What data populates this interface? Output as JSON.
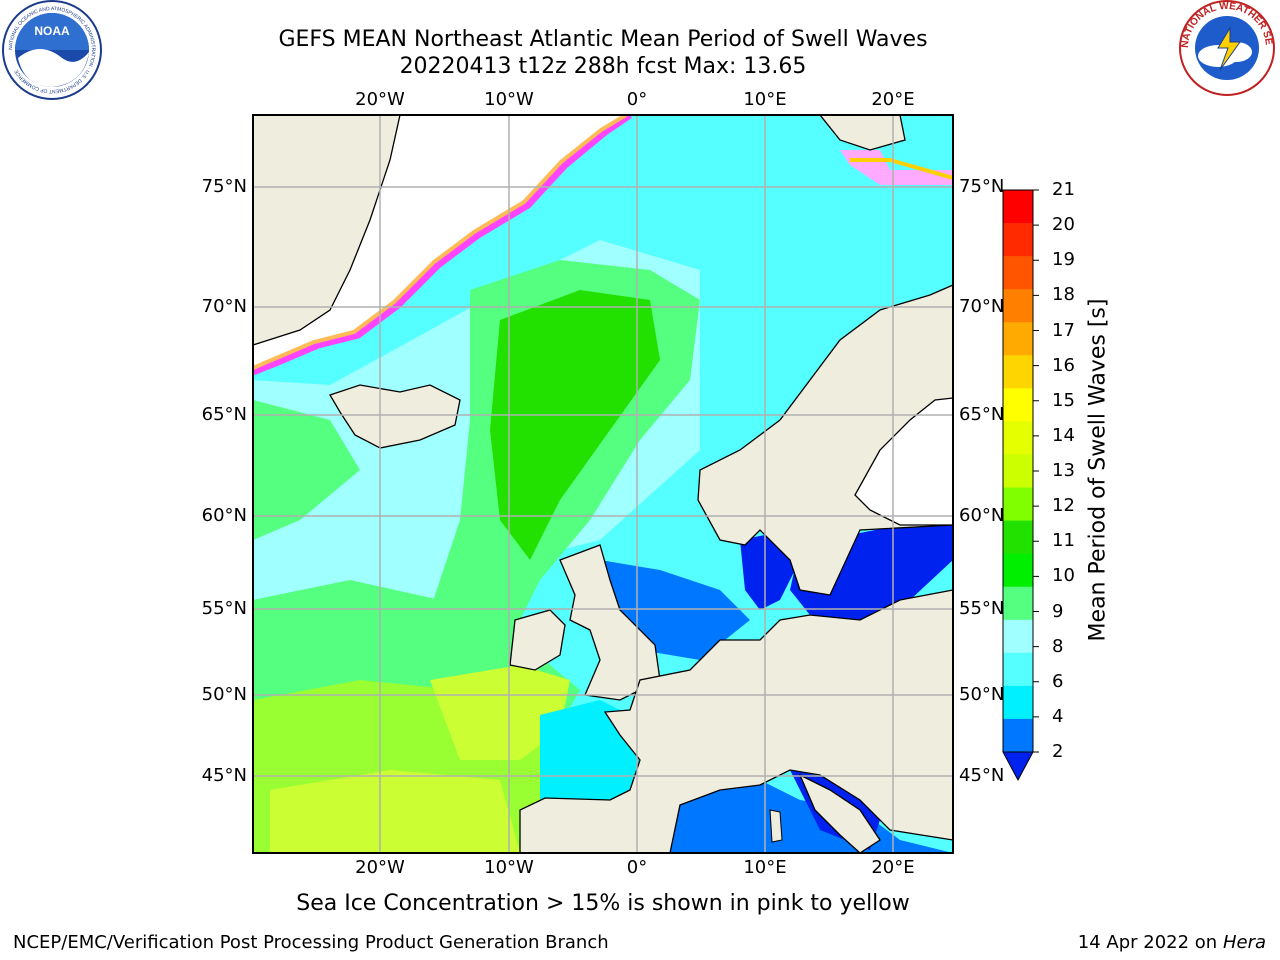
{
  "title_line1": "GEFS MEAN Northeast Atlantic Mean Period of Swell Waves",
  "title_line2": "20220413 t12z 288h fcst   Max: 13.65",
  "logos": {
    "left": {
      "name": "noaa-logo",
      "text": "NOAA",
      "ring_text": "NATIONAL OCEANIC AND ATMOSPHERIC ADMINISTRATION · U.S. DEPARTMENT OF COMMERCE"
    },
    "right": {
      "name": "nws-logo",
      "ring_text": "NATIONAL WEATHER SERVICE"
    }
  },
  "map": {
    "lon_labels": [
      "20°W",
      "10°W",
      "0°",
      "10°E",
      "20°E"
    ],
    "lat_labels": [
      "75°N",
      "70°N",
      "65°N",
      "60°N",
      "55°N",
      "50°N",
      "45°N"
    ],
    "gridlines": true,
    "colors": {
      "land": "#efedde",
      "coast": "#000000",
      "grid": "#b0b0b0",
      "ice_edge": "#ff44ff",
      "ice_inner": "#ffbb55"
    }
  },
  "colorbar": {
    "label": "Mean Period of Swell Waves [s]",
    "ticks": [
      "21",
      "20",
      "19",
      "18",
      "17",
      "16",
      "15",
      "14",
      "13",
      "12",
      "11",
      "10",
      "9",
      "8",
      "6",
      "4",
      "2"
    ],
    "colors": [
      "#ff0000",
      "#ff2a00",
      "#ff5500",
      "#ff8000",
      "#ffaa00",
      "#ffd500",
      "#ffff00",
      "#e6ff00",
      "#ccff00",
      "#80ff00",
      "#22e000",
      "#00ee00",
      "#55ff7f",
      "#a0ffff",
      "#55ffff",
      "#00f0ff",
      "#0077ff",
      "#0022ee"
    ],
    "extend": "min"
  },
  "note": "Sea Ice Concentration > 15% is shown in pink to yellow",
  "footer_left": "NCEP/EMC/Verification Post Processing Product Generation Branch",
  "footer_right_date": "14 Apr 2022 on ",
  "footer_right_host": "Hera",
  "max_value": 13.65
}
